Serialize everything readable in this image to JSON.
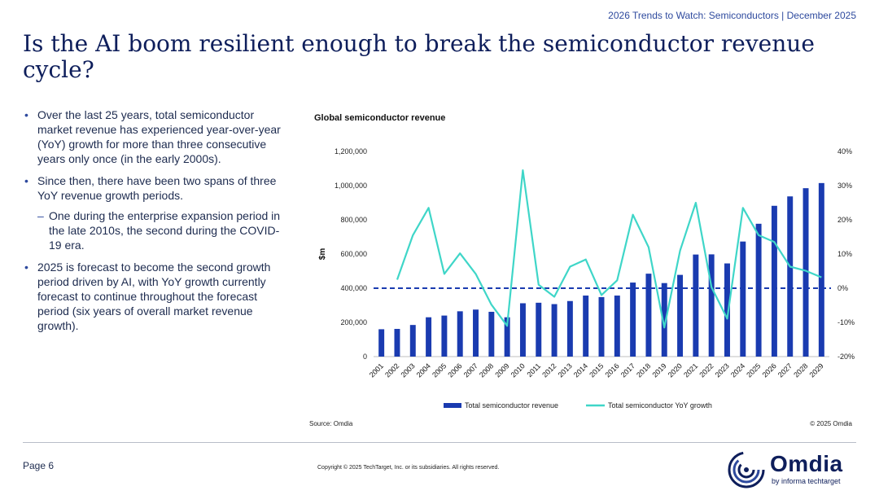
{
  "header": {
    "label": "2026 Trends to Watch: Semiconductors | December 2025"
  },
  "title": "Is the AI boom resilient enough to break the semiconductor revenue cycle?",
  "bullets": {
    "b1": "Over the last 25 years, total semiconductor market revenue has experienced year-over-year (YoY) growth for more than three consecutive years only once (in the early 2000s).",
    "b2": "Since then, there have been two spans of three YoY revenue growth periods.",
    "b2_sub": "One during the enterprise expansion period in the late 2010s, the second during the COVID-19 era.",
    "b3": "2025 is forecast to become the second growth period driven by AI, with YoY growth currently forecast to continue throughout the forecast period (six years of overall market revenue growth)."
  },
  "chart_data": {
    "type": "bar+line",
    "title": "Global semiconductor revenue",
    "ylabel": "$m",
    "categories": [
      "2001",
      "2002",
      "2003",
      "2004",
      "2005",
      "2006",
      "2007",
      "2008",
      "2009",
      "2010",
      "2011",
      "2012",
      "2013",
      "2014",
      "2015",
      "2016",
      "2017",
      "2018",
      "2019",
      "2020",
      "2021",
      "2022",
      "2023",
      "2024",
      "2025",
      "2026",
      "2027",
      "2028",
      "2029"
    ],
    "series": [
      {
        "name": "Total semiconductor revenue",
        "type": "bar",
        "axis": "left",
        "values": [
          160000,
          162000,
          185000,
          230000,
          240000,
          265000,
          275000,
          262000,
          230000,
          312000,
          315000,
          307000,
          325000,
          357000,
          348000,
          357000,
          433000,
          485000,
          430000,
          478000,
          597000,
          598000,
          545000,
          673000,
          777000,
          882000,
          937000,
          985000,
          1015000
        ]
      },
      {
        "name": "Total semiconductor YoY growth",
        "type": "line",
        "axis": "right",
        "values": [
          null,
          2.5,
          15.5,
          23.5,
          4.2,
          10.2,
          4.2,
          -4.8,
          -11.0,
          34.5,
          1.0,
          -2.5,
          6.3,
          8.4,
          -2.0,
          2.3,
          21.5,
          12.0,
          -11.5,
          11.0,
          25.0,
          0.3,
          -8.9,
          23.5,
          15.5,
          13.5,
          6.3,
          5.1,
          3.2
        ]
      }
    ],
    "y_left": {
      "min": 0,
      "max": 1200000,
      "ticks": [
        "0",
        "200,000",
        "400,000",
        "600,000",
        "800,000",
        "1,000,000",
        "1,200,000"
      ]
    },
    "y_right": {
      "min": -20,
      "max": 40,
      "ticks": [
        "-20%",
        "-10%",
        "0%",
        "10%",
        "20%",
        "30%",
        "40%"
      ]
    },
    "zero_growth_reference": "dashed line at 0%",
    "legend": [
      "Total semiconductor revenue",
      "Total semiconductor YoY growth"
    ],
    "source": "Source: Omdia",
    "copyright": "© 2025 Omdia",
    "colors": {
      "bar": "#1a3bb0",
      "line": "#3fd6c8",
      "zero": "#1a3bb0"
    }
  },
  "footer": {
    "page": "Page 6",
    "legal": "Copyright © 2025 TechTarget, Inc. or its subsidiaries. All rights reserved."
  },
  "logo": {
    "name": "Omdia",
    "sub": "by informa techtarget"
  }
}
